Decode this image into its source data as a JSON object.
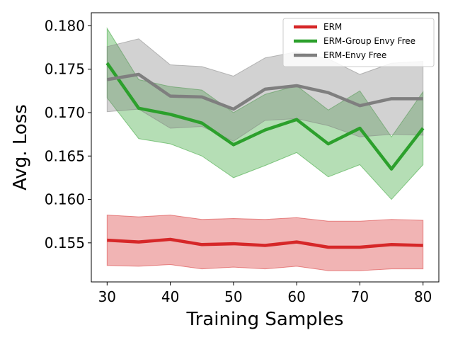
{
  "chart_data": {
    "type": "line",
    "title": "",
    "xlabel": "Training Samples",
    "ylabel": "Avg. Loss",
    "xlim": [
      27.5,
      82.5
    ],
    "ylim": [
      0.1505,
      0.1815
    ],
    "x": [
      30,
      35,
      40,
      45,
      50,
      55,
      60,
      65,
      70,
      75,
      80
    ],
    "xticks": [
      "30",
      "40",
      "50",
      "60",
      "70",
      "80"
    ],
    "yticks": [
      "0.155",
      "0.160",
      "0.165",
      "0.170",
      "0.175",
      "0.180"
    ],
    "grid": false,
    "legend_position": "top-right",
    "series": [
      {
        "name": "ERM",
        "color": "#d62728",
        "values": [
          0.1553,
          0.1551,
          0.1554,
          0.1548,
          0.1549,
          0.1547,
          0.1551,
          0.1545,
          0.1545,
          0.1548,
          0.1547
        ],
        "upper": [
          0.1582,
          0.158,
          0.1582,
          0.1577,
          0.1578,
          0.1577,
          0.1579,
          0.1575,
          0.1575,
          0.1577,
          0.1576
        ],
        "lower": [
          0.1524,
          0.1523,
          0.1525,
          0.152,
          0.1522,
          0.152,
          0.1523,
          0.1518,
          0.1518,
          0.152,
          0.152
        ]
      },
      {
        "name": "ERM-Group Envy Free",
        "color": "#2ca02c",
        "values": [
          0.1757,
          0.1705,
          0.1698,
          0.1688,
          0.1663,
          0.168,
          0.1692,
          0.1664,
          0.1682,
          0.1635,
          0.1682
        ],
        "upper": [
          0.1797,
          0.1738,
          0.173,
          0.1726,
          0.17,
          0.1721,
          0.1731,
          0.1703,
          0.1725,
          0.1672,
          0.1724
        ],
        "lower": [
          0.1717,
          0.167,
          0.1664,
          0.165,
          0.1625,
          0.1639,
          0.1654,
          0.1626,
          0.164,
          0.16,
          0.164
        ]
      },
      {
        "name": "ERM-Envy Free",
        "color": "#7f7f7f",
        "values": [
          0.1738,
          0.1744,
          0.1719,
          0.1718,
          0.1704,
          0.1727,
          0.1731,
          0.1723,
          0.1708,
          0.1716,
          0.1716
        ],
        "upper": [
          0.1776,
          0.1785,
          0.1755,
          0.1753,
          0.1742,
          0.1763,
          0.177,
          0.1762,
          0.1744,
          0.1757,
          0.1759
        ],
        "lower": [
          0.1701,
          0.1704,
          0.1682,
          0.1684,
          0.1667,
          0.1691,
          0.1693,
          0.1685,
          0.1672,
          0.1675,
          0.1674
        ]
      }
    ]
  }
}
